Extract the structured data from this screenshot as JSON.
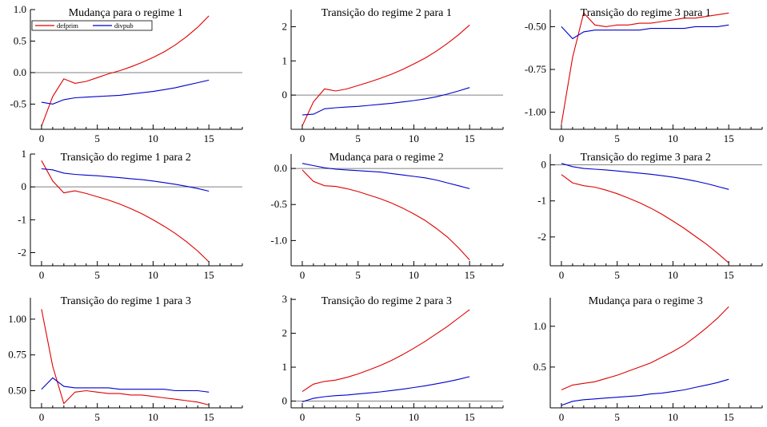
{
  "colors": {
    "defprim": "#e00000",
    "divpub": "#0000cc",
    "zero_line": "#808080",
    "axis": "#000000"
  },
  "legend": {
    "items": [
      "defprim",
      "divpub"
    ]
  },
  "chart_data": [
    {
      "type": "line",
      "title": "Mudança para o regime 1",
      "x": [
        0,
        1,
        2,
        3,
        4,
        5,
        6,
        7,
        8,
        9,
        10,
        11,
        12,
        13,
        14,
        15
      ],
      "series": [
        {
          "name": "defprim",
          "values": [
            -0.85,
            -0.38,
            -0.1,
            -0.17,
            -0.14,
            -0.08,
            -0.02,
            0.03,
            0.09,
            0.16,
            0.24,
            0.33,
            0.44,
            0.57,
            0.72,
            0.9
          ]
        },
        {
          "name": "divpub",
          "values": [
            -0.47,
            -0.5,
            -0.43,
            -0.4,
            -0.39,
            -0.38,
            -0.37,
            -0.36,
            -0.34,
            -0.32,
            -0.3,
            -0.27,
            -0.24,
            -0.2,
            -0.16,
            -0.12
          ]
        }
      ],
      "xlim": [
        -1,
        18
      ],
      "ylim": [
        -0.9,
        1.0
      ],
      "xticks": [
        0,
        5,
        10,
        15
      ],
      "yticks": [
        -0.5,
        0.0,
        0.5,
        1.0
      ],
      "ytick_labels": [
        "-0.5",
        "0.0",
        "0.5",
        "1.0"
      ],
      "legend": true
    },
    {
      "type": "line",
      "title": "Transição do regime 2 para 1",
      "x": [
        0,
        1,
        2,
        3,
        4,
        5,
        6,
        7,
        8,
        9,
        10,
        11,
        12,
        13,
        14,
        15
      ],
      "series": [
        {
          "name": "defprim",
          "values": [
            -0.9,
            -0.2,
            0.18,
            0.12,
            0.18,
            0.28,
            0.38,
            0.49,
            0.61,
            0.75,
            0.91,
            1.08,
            1.28,
            1.51,
            1.76,
            2.05
          ]
        },
        {
          "name": "divpub",
          "values": [
            -0.58,
            -0.56,
            -0.4,
            -0.37,
            -0.35,
            -0.33,
            -0.3,
            -0.27,
            -0.24,
            -0.2,
            -0.16,
            -0.11,
            -0.05,
            0.03,
            0.12,
            0.22
          ]
        }
      ],
      "xlim": [
        -1,
        18
      ],
      "ylim": [
        -1.0,
        2.5
      ],
      "xticks": [
        0,
        5,
        10,
        15
      ],
      "yticks": [
        0,
        1,
        2
      ],
      "ytick_labels": [
        "0",
        "1",
        "2"
      ]
    },
    {
      "type": "line",
      "title": "Transição do regime 3 para 1",
      "x": [
        0,
        1,
        2,
        3,
        4,
        5,
        6,
        7,
        8,
        9,
        10,
        11,
        12,
        13,
        14,
        15
      ],
      "series": [
        {
          "name": "defprim",
          "values": [
            -1.07,
            -0.68,
            -0.42,
            -0.49,
            -0.5,
            -0.49,
            -0.49,
            -0.48,
            -0.48,
            -0.47,
            -0.46,
            -0.45,
            -0.45,
            -0.44,
            -0.43,
            -0.42
          ]
        },
        {
          "name": "divpub",
          "values": [
            -0.5,
            -0.57,
            -0.53,
            -0.52,
            -0.52,
            -0.52,
            -0.52,
            -0.52,
            -0.51,
            -0.51,
            -0.51,
            -0.51,
            -0.5,
            -0.5,
            -0.5,
            -0.49
          ]
        }
      ],
      "xlim": [
        -1,
        18
      ],
      "ylim": [
        -1.1,
        -0.4
      ],
      "xticks": [
        0,
        5,
        10,
        15
      ],
      "yticks": [
        -1.0,
        -0.75,
        -0.5
      ],
      "ytick_labels": [
        "-1.00",
        "-0.75",
        "-0.50"
      ]
    },
    {
      "type": "line",
      "title": "Transição do regime 1 para 2",
      "x": [
        0,
        1,
        2,
        3,
        4,
        5,
        6,
        7,
        8,
        9,
        10,
        11,
        12,
        13,
        14,
        15
      ],
      "series": [
        {
          "name": "defprim",
          "values": [
            0.8,
            0.18,
            -0.18,
            -0.12,
            -0.2,
            -0.3,
            -0.4,
            -0.52,
            -0.66,
            -0.82,
            -1.0,
            -1.2,
            -1.42,
            -1.67,
            -1.95,
            -2.28
          ]
        },
        {
          "name": "divpub",
          "values": [
            0.55,
            0.52,
            0.42,
            0.38,
            0.36,
            0.34,
            0.31,
            0.28,
            0.25,
            0.22,
            0.18,
            0.13,
            0.08,
            0.02,
            -0.05,
            -0.13
          ]
        }
      ],
      "xlim": [
        -1,
        18
      ],
      "ylim": [
        -2.4,
        1.0
      ],
      "xticks": [
        0,
        5,
        10,
        15
      ],
      "yticks": [
        -2,
        -1,
        0,
        1
      ],
      "ytick_labels": [
        "-2",
        "-1",
        "0",
        "1"
      ]
    },
    {
      "type": "line",
      "title": "Mudança para o regime 2",
      "x": [
        0,
        1,
        2,
        3,
        4,
        5,
        6,
        7,
        8,
        9,
        10,
        11,
        12,
        13,
        14,
        15
      ],
      "series": [
        {
          "name": "defprim",
          "values": [
            -0.02,
            -0.18,
            -0.24,
            -0.25,
            -0.28,
            -0.32,
            -0.37,
            -0.42,
            -0.48,
            -0.55,
            -0.63,
            -0.72,
            -0.83,
            -0.95,
            -1.1,
            -1.27
          ]
        },
        {
          "name": "divpub",
          "values": [
            0.07,
            0.04,
            0.01,
            -0.01,
            -0.02,
            -0.03,
            -0.04,
            -0.05,
            -0.07,
            -0.09,
            -0.11,
            -0.13,
            -0.16,
            -0.2,
            -0.24,
            -0.28
          ]
        }
      ],
      "xlim": [
        -1,
        18
      ],
      "ylim": [
        -1.35,
        0.2
      ],
      "xticks": [
        0,
        5,
        10,
        15
      ],
      "yticks": [
        -1.0,
        -0.5,
        0.0
      ],
      "ytick_labels": [
        "-1.0",
        "-0.5",
        "0.0"
      ]
    },
    {
      "type": "line",
      "title": "Transição do regime 3 para 2",
      "x": [
        0,
        1,
        2,
        3,
        4,
        5,
        6,
        7,
        8,
        9,
        10,
        11,
        12,
        13,
        14,
        15
      ],
      "series": [
        {
          "name": "defprim",
          "values": [
            -0.27,
            -0.5,
            -0.58,
            -0.62,
            -0.7,
            -0.8,
            -0.92,
            -1.05,
            -1.2,
            -1.37,
            -1.56,
            -1.76,
            -1.98,
            -2.2,
            -2.45,
            -2.72
          ]
        },
        {
          "name": "divpub",
          "values": [
            0.04,
            -0.05,
            -0.1,
            -0.12,
            -0.14,
            -0.17,
            -0.2,
            -0.23,
            -0.26,
            -0.3,
            -0.34,
            -0.39,
            -0.45,
            -0.52,
            -0.6,
            -0.68
          ]
        }
      ],
      "xlim": [
        -1,
        18
      ],
      "ylim": [
        -2.8,
        0.3
      ],
      "xticks": [
        0,
        5,
        10,
        15
      ],
      "yticks": [
        -2,
        -1,
        0
      ],
      "ytick_labels": [
        "-2",
        "-1",
        "0"
      ]
    },
    {
      "type": "line",
      "title": "Transição do regime 1 para 3",
      "x": [
        0,
        1,
        2,
        3,
        4,
        5,
        6,
        7,
        8,
        9,
        10,
        11,
        12,
        13,
        14,
        15
      ],
      "series": [
        {
          "name": "defprim",
          "values": [
            1.07,
            0.67,
            0.41,
            0.49,
            0.5,
            0.49,
            0.48,
            0.48,
            0.47,
            0.47,
            0.46,
            0.45,
            0.44,
            0.43,
            0.42,
            0.4
          ]
        },
        {
          "name": "divpub",
          "values": [
            0.51,
            0.59,
            0.53,
            0.52,
            0.52,
            0.52,
            0.52,
            0.51,
            0.51,
            0.51,
            0.51,
            0.51,
            0.5,
            0.5,
            0.5,
            0.49
          ]
        }
      ],
      "xlim": [
        -1,
        18
      ],
      "ylim": [
        0.38,
        1.15
      ],
      "xticks": [
        0,
        5,
        10,
        15
      ],
      "yticks": [
        0.5,
        0.75,
        1.0
      ],
      "ytick_labels": [
        "0.50",
        "0.75",
        "1.00"
      ]
    },
    {
      "type": "line",
      "title": "Transição do regime 2 para 3",
      "x": [
        0,
        1,
        2,
        3,
        4,
        5,
        6,
        7,
        8,
        9,
        10,
        11,
        12,
        13,
        14,
        15
      ],
      "series": [
        {
          "name": "defprim",
          "values": [
            0.28,
            0.5,
            0.58,
            0.62,
            0.7,
            0.8,
            0.92,
            1.05,
            1.2,
            1.37,
            1.56,
            1.76,
            1.98,
            2.2,
            2.45,
            2.7
          ]
        },
        {
          "name": "divpub",
          "values": [
            -0.02,
            0.08,
            0.13,
            0.16,
            0.18,
            0.21,
            0.24,
            0.27,
            0.31,
            0.35,
            0.4,
            0.45,
            0.51,
            0.57,
            0.64,
            0.72
          ]
        }
      ],
      "xlim": [
        -1,
        18
      ],
      "ylim": [
        -0.2,
        3.05
      ],
      "xticks": [
        0,
        5,
        10,
        15
      ],
      "yticks": [
        0,
        1,
        2,
        3
      ],
      "ytick_labels": [
        "0",
        "1",
        "2",
        "3"
      ]
    },
    {
      "type": "line",
      "title": "Mudança para o regime 3",
      "x": [
        0,
        1,
        2,
        3,
        4,
        5,
        6,
        7,
        8,
        9,
        10,
        11,
        12,
        13,
        14,
        15
      ],
      "series": [
        {
          "name": "defprim",
          "values": [
            0.22,
            0.28,
            0.3,
            0.32,
            0.36,
            0.4,
            0.45,
            0.5,
            0.55,
            0.62,
            0.69,
            0.77,
            0.87,
            0.98,
            1.1,
            1.24
          ]
        },
        {
          "name": "divpub",
          "values": [
            0.03,
            0.08,
            0.1,
            0.11,
            0.12,
            0.13,
            0.14,
            0.15,
            0.17,
            0.18,
            0.2,
            0.22,
            0.25,
            0.28,
            0.31,
            0.35
          ]
        }
      ],
      "xlim": [
        -1,
        18
      ],
      "ylim": [
        0.0,
        1.35
      ],
      "xticks": [
        0,
        5,
        10,
        15
      ],
      "yticks": [
        0.5,
        1.0
      ],
      "ytick_labels": [
        "0.5",
        "1.0"
      ]
    }
  ]
}
